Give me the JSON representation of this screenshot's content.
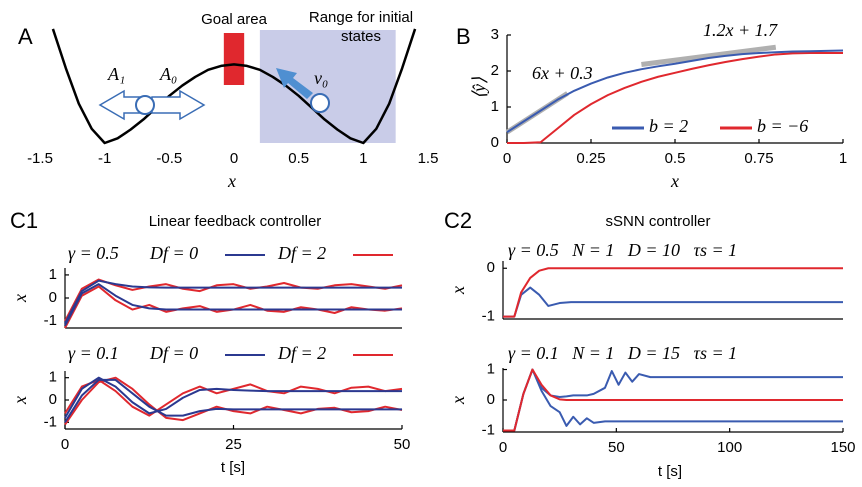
{
  "chart_data": [
    {
      "type": "line",
      "panel_label": "A",
      "x_label": "x",
      "x": [
        -1.4,
        -1.3,
        -1.2,
        -1.1,
        -1.0,
        -0.9,
        -0.8,
        -0.7,
        -0.6,
        -0.5,
        -0.4,
        -0.3,
        -0.2,
        -0.1,
        0,
        0.1,
        0.2,
        0.3,
        0.4,
        0.5,
        0.6,
        0.7,
        0.8,
        0.9,
        1.0,
        1.1,
        1.2,
        1.3,
        1.4
      ],
      "values": [
        1.45,
        0.95,
        0.5,
        0.18,
        0,
        0.06,
        0.17,
        0.3,
        0.45,
        0.6,
        0.73,
        0.84,
        0.93,
        0.98,
        1,
        0.98,
        0.93,
        0.84,
        0.73,
        0.6,
        0.45,
        0.3,
        0.17,
        0.06,
        0,
        0.18,
        0.5,
        0.95,
        1.45
      ],
      "color": "#000000",
      "xlim": [
        -1.5,
        1.5
      ],
      "xticks": [
        -1.5,
        -1,
        -0.5,
        0,
        0.5,
        1,
        1.5
      ],
      "ylim": [
        0,
        1.5
      ],
      "regions": [
        {
          "label": "Goal area",
          "x": [
            -0.04,
            0.04
          ],
          "color": "#e0282e"
        },
        {
          "label": "Range for initial states",
          "x": [
            0.2,
            1.25
          ],
          "color": "#c9cce8"
        }
      ],
      "annotations": [
        "A₁",
        "A₀",
        "v₀"
      ]
    },
    {
      "type": "line",
      "panel_label": "B",
      "x_label": "x",
      "y_label": "⟨ŷ⟩",
      "x": [
        0,
        0.05,
        0.1,
        0.15,
        0.2,
        0.25,
        0.3,
        0.35,
        0.4,
        0.45,
        0.5,
        0.55,
        0.6,
        0.65,
        0.7,
        0.75,
        0.8,
        0.85,
        0.9,
        0.95,
        1
      ],
      "series": [
        {
          "name": "b = 2",
          "color": "#3a5bb0",
          "values": [
            0.3,
            0.6,
            0.9,
            1.2,
            1.45,
            1.65,
            1.82,
            1.95,
            2.05,
            2.13,
            2.2,
            2.28,
            2.36,
            2.42,
            2.47,
            2.5,
            2.52,
            2.54,
            2.55,
            2.56,
            2.57
          ]
        },
        {
          "name": "b = −6",
          "color": "#e0282e",
          "values": [
            0,
            0,
            0.02,
            0.4,
            0.78,
            1.08,
            1.33,
            1.53,
            1.7,
            1.84,
            1.95,
            2.06,
            2.16,
            2.25,
            2.33,
            2.4,
            2.46,
            2.49,
            2.5,
            2.5,
            2.5
          ]
        }
      ],
      "fit_lines": [
        {
          "label": "6x + 0.3",
          "color": "#b0b0b0",
          "x": [
            0,
            0.18
          ],
          "values": [
            0.3,
            1.38
          ]
        },
        {
          "label": "1.2x + 1.7",
          "color": "#b0b0b0",
          "x": [
            0.4,
            0.8
          ],
          "values": [
            2.18,
            2.66
          ]
        }
      ],
      "xlim": [
        0,
        1
      ],
      "xticks": [
        0,
        0.25,
        0.5,
        0.75,
        1
      ],
      "ylim": [
        0,
        3
      ],
      "yticks": [
        0,
        1,
        2,
        3
      ]
    },
    {
      "type": "line",
      "panel_label": "C1",
      "title": "Linear feedback controller",
      "annotation": "γ = 0.5",
      "y_label": "x",
      "x": [
        0,
        2.5,
        5,
        7.5,
        10,
        12.5,
        15,
        17.5,
        20,
        22.5,
        25,
        27.5,
        30,
        32.5,
        35,
        37.5,
        40,
        42.5,
        45,
        47.5,
        50
      ],
      "series": [
        {
          "name": "Df = 0",
          "color": "#2b3990",
          "values": [
            -1.1,
            0.3,
            0.75,
            0.6,
            0.5,
            0.46,
            0.45,
            0.45,
            0.45,
            0.45,
            0.45,
            0.45,
            0.45,
            0.45,
            0.45,
            0.45,
            0.45,
            0.45,
            0.45,
            0.45,
            0.45
          ]
        },
        {
          "color": "#2b3990",
          "values": [
            -1.2,
            0.2,
            0.6,
            0.1,
            -0.3,
            -0.45,
            -0.5,
            -0.5,
            -0.5,
            -0.5,
            -0.5,
            -0.5,
            -0.5,
            -0.5,
            -0.5,
            -0.5,
            -0.5,
            -0.5,
            -0.5,
            -0.5,
            -0.5
          ]
        },
        {
          "name": "Df = 2",
          "color": "#e0282e",
          "values": [
            -1.0,
            0.4,
            0.8,
            0.55,
            0.35,
            0.5,
            0.6,
            0.4,
            0.3,
            0.55,
            0.6,
            0.4,
            0.5,
            0.65,
            0.45,
            0.4,
            0.55,
            0.6,
            0.5,
            0.4,
            0.55
          ]
        },
        {
          "color": "#e0282e",
          "values": [
            -1.3,
            0.1,
            0.5,
            -0.1,
            -0.5,
            -0.3,
            -0.6,
            -0.45,
            -0.35,
            -0.6,
            -0.5,
            -0.3,
            -0.55,
            -0.6,
            -0.4,
            -0.5,
            -0.65,
            -0.4,
            -0.5,
            -0.55,
            -0.45
          ]
        }
      ],
      "xlim": [
        0,
        50
      ],
      "ylim": [
        -1.3,
        1.3
      ],
      "yticks": [
        -1,
        0,
        1
      ]
    },
    {
      "type": "line",
      "annotation": "γ = 0.1",
      "y_label": "x",
      "x_label": "t [s]",
      "x": [
        0,
        2.5,
        5,
        7.5,
        10,
        12.5,
        15,
        17.5,
        20,
        22.5,
        25,
        27.5,
        30,
        32.5,
        35,
        37.5,
        40,
        42.5,
        45,
        47.5,
        50
      ],
      "series": [
        {
          "name": "Df = 0",
          "color": "#2b3990",
          "values": [
            -0.8,
            0.5,
            1.0,
            0.6,
            -0.1,
            -0.6,
            -0.4,
            0.1,
            0.45,
            0.5,
            0.45,
            0.42,
            0.4,
            0.4,
            0.4,
            0.4,
            0.4,
            0.4,
            0.4,
            0.4,
            0.4
          ]
        },
        {
          "color": "#2b3990",
          "values": [
            -1.0,
            0.2,
            0.9,
            0.9,
            0.3,
            -0.3,
            -0.7,
            -0.7,
            -0.5,
            -0.4,
            -0.42,
            -0.42,
            -0.42,
            -0.42,
            -0.42,
            -0.42,
            -0.42,
            -0.42,
            -0.42,
            -0.42,
            -0.42
          ]
        },
        {
          "name": "Df = 2",
          "color": "#e0282e",
          "values": [
            -0.6,
            0.6,
            0.9,
            0.4,
            -0.3,
            -0.7,
            -0.2,
            0.3,
            0.6,
            0.3,
            0.5,
            0.7,
            0.4,
            0.3,
            0.6,
            0.5,
            0.3,
            0.55,
            0.6,
            0.4,
            0.5
          ]
        },
        {
          "color": "#e0282e",
          "values": [
            -1.1,
            0.0,
            0.8,
            1.0,
            0.5,
            -0.2,
            -0.8,
            -0.9,
            -0.6,
            -0.3,
            -0.5,
            -0.6,
            -0.3,
            -0.45,
            -0.6,
            -0.4,
            -0.35,
            -0.55,
            -0.5,
            -0.3,
            -0.45
          ]
        }
      ],
      "xlim": [
        0,
        50
      ],
      "xticks": [
        0,
        25,
        50
      ],
      "ylim": [
        -1.3,
        1.3
      ],
      "yticks": [
        -1,
        0,
        1
      ]
    },
    {
      "type": "line",
      "panel_label": "C2",
      "title": "sSNN controller",
      "annotation": "γ = 0.5   N = 1   D = 10   τs = 1",
      "y_label": "x",
      "x": [
        0,
        5,
        8,
        12,
        16,
        20,
        25,
        30,
        40,
        60,
        80,
        100,
        120,
        150
      ],
      "series": [
        {
          "color": "#e0282e",
          "values": [
            -1,
            -1,
            -0.5,
            -0.2,
            -0.05,
            0,
            0,
            0,
            0,
            0,
            0,
            0,
            0,
            0
          ]
        },
        {
          "color": "#3a5bb0",
          "values": [
            -1,
            -1,
            -0.55,
            -0.4,
            -0.55,
            -0.78,
            -0.72,
            -0.7,
            -0.7,
            -0.7,
            -0.7,
            -0.7,
            -0.7,
            -0.7
          ]
        }
      ],
      "xlim": [
        0,
        150
      ],
      "ylim": [
        -1.05,
        0.15
      ],
      "yticks": [
        -1,
        0
      ]
    },
    {
      "type": "line",
      "annotation": "γ = 0.1   N = 1   D = 15   τs = 1",
      "y_label": "x",
      "x_label": "t [s]",
      "x": [
        0,
        5,
        9,
        13,
        17,
        21,
        25,
        28,
        31,
        34,
        37,
        40,
        45,
        48,
        51,
        54,
        57,
        60,
        65,
        80,
        100,
        150
      ],
      "series": [
        {
          "color": "#e0282e",
          "values": [
            -1,
            -1,
            0.2,
            1,
            0.5,
            0.15,
            0.02,
            0,
            0,
            0,
            0,
            0,
            0,
            0,
            0,
            0,
            0,
            0,
            0,
            0,
            0,
            0
          ]
        },
        {
          "color": "#3a5bb0",
          "values": [
            -1,
            -1,
            0.2,
            1,
            0.4,
            0.15,
            0.1,
            0.12,
            0.15,
            0.15,
            0.15,
            0.2,
            0.4,
            0.95,
            0.5,
            0.9,
            0.6,
            0.85,
            0.75,
            0.75,
            0.75,
            0.75
          ]
        },
        {
          "color": "#3a5bb0",
          "values": [
            -1,
            -1,
            0.2,
            1,
            0.3,
            -0.2,
            -0.4,
            -0.85,
            -0.55,
            -0.8,
            -0.6,
            -0.75,
            -0.7,
            -0.7,
            -0.7,
            -0.7,
            -0.7,
            -0.7,
            -0.7,
            -0.7,
            -0.7,
            -0.7
          ]
        }
      ],
      "xlim": [
        0,
        150
      ],
      "xticks": [
        0,
        50,
        100,
        150
      ],
      "ylim": [
        -1.05,
        1.05
      ],
      "yticks": [
        -1,
        0,
        1
      ]
    }
  ]
}
